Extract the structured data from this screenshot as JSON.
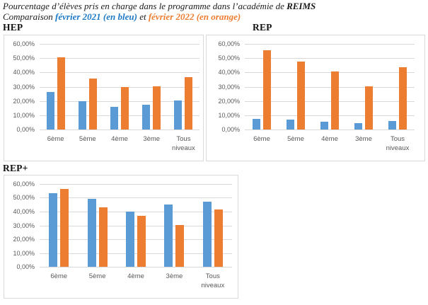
{
  "title": {
    "line1_prefix": "Pourcentage d’élèves pris en charge dans le programme dans l’académie de ",
    "line1_bold": "REIMS",
    "line2_prefix": "Comparaison ",
    "line2_blue": "février 2021 (en bleu)",
    "line2_middle": " et ",
    "line2_orange": "février 2022 (en orange)"
  },
  "colors": {
    "series_blue": "#5B9BD5",
    "series_orange": "#ED7D31",
    "title_blue": "#1E7AC6",
    "title_orange": "#ED7D31",
    "gridline": "#D9D9D9",
    "chart_border": "#D9D9D9",
    "axis_text": "#595959"
  },
  "axis": {
    "ticks": [
      "60,00%",
      "50,00%",
      "40,00%",
      "30,00%",
      "20,00%",
      "10,00%",
      "0,00%"
    ],
    "max": 60
  },
  "chart_data": [
    {
      "type": "bar",
      "title": "HEP",
      "categories": [
        "6ème",
        "5ème",
        "4ème",
        "3ème",
        "Tous niveaux"
      ],
      "ylabel": "",
      "xlabel": "",
      "ylim": [
        0,
        60
      ],
      "grid": true,
      "legend": "none",
      "series": [
        {
          "name": "février 2021",
          "color": "#5B9BD5",
          "values": [
            26.5,
            19.8,
            16.0,
            17.3,
            20.1
          ]
        },
        {
          "name": "février 2022",
          "color": "#ED7D31",
          "values": [
            50.6,
            35.5,
            29.7,
            30.2,
            36.9
          ]
        }
      ]
    },
    {
      "type": "bar",
      "title": "REP",
      "categories": [
        "6ème",
        "5ème",
        "4ème",
        "3ème",
        "Tous niveaux"
      ],
      "ylabel": "",
      "xlabel": "",
      "ylim": [
        0,
        60
      ],
      "grid": true,
      "legend": "none",
      "series": [
        {
          "name": "février 2021",
          "color": "#5B9BD5",
          "values": [
            7.5,
            6.8,
            5.4,
            4.6,
            5.9
          ]
        },
        {
          "name": "février 2022",
          "color": "#ED7D31",
          "values": [
            55.3,
            47.4,
            40.5,
            30.2,
            43.4
          ]
        }
      ]
    },
    {
      "type": "bar",
      "title": "REP+",
      "categories": [
        "6ème",
        "5ème",
        "4ème",
        "3ème",
        "Tous niveaux"
      ],
      "ylabel": "",
      "xlabel": "",
      "ylim": [
        0,
        60
      ],
      "grid": true,
      "legend": "none",
      "series": [
        {
          "name": "février 2021",
          "color": "#5B9BD5",
          "values": [
            53.5,
            49.4,
            40.2,
            45.1,
            47.0
          ]
        },
        {
          "name": "février 2022",
          "color": "#ED7D31",
          "values": [
            56.2,
            43.2,
            37.1,
            30.3,
            41.8
          ]
        }
      ]
    }
  ]
}
